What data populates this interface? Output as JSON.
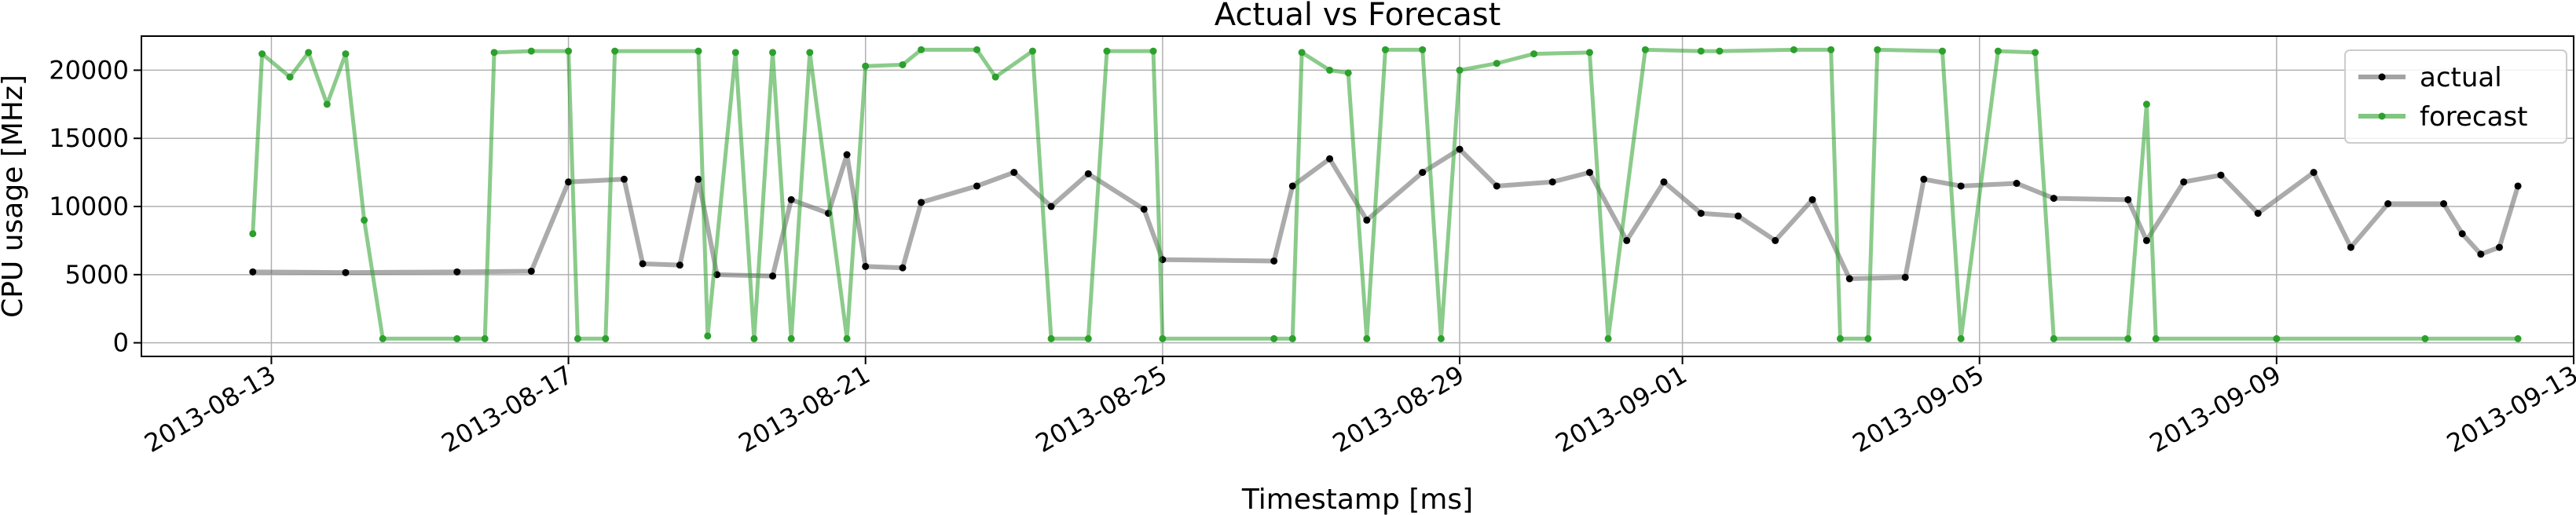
{
  "chart_data": {
    "type": "line",
    "title": "Actual vs Forecast",
    "xlabel": "Timestamp [ms]",
    "ylabel": "CPU usage [MHz]",
    "ylim": [
      -1000,
      22500
    ],
    "xlim": [
      "2013-08-11T06:00",
      "2013-09-13T00:00"
    ],
    "yticks": [
      0,
      5000,
      10000,
      15000,
      20000
    ],
    "xticks": [
      "2013-08-13",
      "2013-08-17",
      "2013-08-21",
      "2013-08-25",
      "2013-08-29",
      "2013-09-01",
      "2013-09-05",
      "2013-09-09",
      "2013-09-13"
    ],
    "grid": true,
    "legend_position": "top-right",
    "series": [
      {
        "name": "actual",
        "color": "#000000",
        "points": [
          [
            "2013-08-12T18:00",
            5200
          ],
          [
            "2013-08-14T00:00",
            5150
          ],
          [
            "2013-08-15T12:00",
            5200
          ],
          [
            "2013-08-16T12:00",
            5250
          ],
          [
            "2013-08-17T00:00",
            11800
          ],
          [
            "2013-08-17T18:00",
            12000
          ],
          [
            "2013-08-18T00:00",
            5800
          ],
          [
            "2013-08-18T12:00",
            5700
          ],
          [
            "2013-08-18T18:00",
            12000
          ],
          [
            "2013-08-19T00:00",
            5000
          ],
          [
            "2013-08-19T18:00",
            4900
          ],
          [
            "2013-08-20T00:00",
            10500
          ],
          [
            "2013-08-20T12:00",
            9500
          ],
          [
            "2013-08-20T18:00",
            13800
          ],
          [
            "2013-08-21T00:00",
            5600
          ],
          [
            "2013-08-21T12:00",
            5500
          ],
          [
            "2013-08-21T18:00",
            10300
          ],
          [
            "2013-08-22T12:00",
            11500
          ],
          [
            "2013-08-23T00:00",
            12500
          ],
          [
            "2013-08-23T12:00",
            10000
          ],
          [
            "2013-08-24T00:00",
            12400
          ],
          [
            "2013-08-24T18:00",
            9800
          ],
          [
            "2013-08-25T00:00",
            6100
          ],
          [
            "2013-08-26T12:00",
            6000
          ],
          [
            "2013-08-26T18:00",
            11500
          ],
          [
            "2013-08-27T06:00",
            13500
          ],
          [
            "2013-08-27T18:00",
            9000
          ],
          [
            "2013-08-28T12:00",
            12500
          ],
          [
            "2013-08-29T00:00",
            14200
          ],
          [
            "2013-08-29T12:00",
            11500
          ],
          [
            "2013-08-30T06:00",
            11800
          ],
          [
            "2013-08-30T18:00",
            12500
          ],
          [
            "2013-08-31T06:00",
            7500
          ],
          [
            "2013-08-31T18:00",
            11800
          ],
          [
            "2013-09-01T06:00",
            9500
          ],
          [
            "2013-09-01T18:00",
            9300
          ],
          [
            "2013-09-02T06:00",
            7500
          ],
          [
            "2013-09-02T18:00",
            10500
          ],
          [
            "2013-09-03T06:00",
            4700
          ],
          [
            "2013-09-04T00:00",
            4800
          ],
          [
            "2013-09-04T06:00",
            12000
          ],
          [
            "2013-09-04T18:00",
            11500
          ],
          [
            "2013-09-05T12:00",
            11700
          ],
          [
            "2013-09-06T00:00",
            10600
          ],
          [
            "2013-09-07T00:00",
            10500
          ],
          [
            "2013-09-07T06:00",
            7500
          ],
          [
            "2013-09-07T18:00",
            11800
          ],
          [
            "2013-09-08T06:00",
            12300
          ],
          [
            "2013-09-08T18:00",
            9500
          ],
          [
            "2013-09-09T12:00",
            12500
          ],
          [
            "2013-09-10T00:00",
            7000
          ],
          [
            "2013-09-10T12:00",
            10200
          ],
          [
            "2013-09-11T06:00",
            10200
          ],
          [
            "2013-09-11T12:00",
            8000
          ],
          [
            "2013-09-11T18:00",
            6500
          ],
          [
            "2013-09-12T00:00",
            7000
          ],
          [
            "2013-09-12T06:00",
            11500
          ]
        ]
      },
      {
        "name": "forecast",
        "color": "#2ca02c",
        "points": [
          [
            "2013-08-12T18:00",
            8000
          ],
          [
            "2013-08-12T21:00",
            21200
          ],
          [
            "2013-08-13T06:00",
            19500
          ],
          [
            "2013-08-13T12:00",
            21300
          ],
          [
            "2013-08-13T18:00",
            17500
          ],
          [
            "2013-08-14T00:00",
            21200
          ],
          [
            "2013-08-14T06:00",
            9000
          ],
          [
            "2013-08-14T12:00",
            300
          ],
          [
            "2013-08-15T12:00",
            300
          ],
          [
            "2013-08-15T21:00",
            300
          ],
          [
            "2013-08-16T00:00",
            21300
          ],
          [
            "2013-08-16T12:00",
            21400
          ],
          [
            "2013-08-17T00:00",
            21400
          ],
          [
            "2013-08-17T03:00",
            300
          ],
          [
            "2013-08-17T12:00",
            300
          ],
          [
            "2013-08-17T15:00",
            21400
          ],
          [
            "2013-08-18T18:00",
            21400
          ],
          [
            "2013-08-18T21:00",
            500
          ],
          [
            "2013-08-19T06:00",
            21300
          ],
          [
            "2013-08-19T12:00",
            300
          ],
          [
            "2013-08-19T18:00",
            21300
          ],
          [
            "2013-08-20T00:00",
            300
          ],
          [
            "2013-08-20T06:00",
            21300
          ],
          [
            "2013-08-20T18:00",
            300
          ],
          [
            "2013-08-21T00:00",
            20300
          ],
          [
            "2013-08-21T12:00",
            20400
          ],
          [
            "2013-08-21T18:00",
            21500
          ],
          [
            "2013-08-22T12:00",
            21500
          ],
          [
            "2013-08-22T18:00",
            19500
          ],
          [
            "2013-08-23T06:00",
            21400
          ],
          [
            "2013-08-23T12:00",
            300
          ],
          [
            "2013-08-24T00:00",
            300
          ],
          [
            "2013-08-24T06:00",
            21400
          ],
          [
            "2013-08-24T21:00",
            21400
          ],
          [
            "2013-08-25T00:00",
            300
          ],
          [
            "2013-08-26T12:00",
            300
          ],
          [
            "2013-08-26T18:00",
            300
          ],
          [
            "2013-08-26T21:00",
            21300
          ],
          [
            "2013-08-27T06:00",
            20000
          ],
          [
            "2013-08-27T12:00",
            19800
          ],
          [
            "2013-08-27T18:00",
            300
          ],
          [
            "2013-08-28T00:00",
            21500
          ],
          [
            "2013-08-28T12:00",
            21500
          ],
          [
            "2013-08-28T18:00",
            300
          ],
          [
            "2013-08-29T00:00",
            20000
          ],
          [
            "2013-08-29T12:00",
            20500
          ],
          [
            "2013-08-30T00:00",
            21200
          ],
          [
            "2013-08-30T18:00",
            21300
          ],
          [
            "2013-08-31T00:00",
            300
          ],
          [
            "2013-08-31T12:00",
            21500
          ],
          [
            "2013-09-01T06:00",
            21400
          ],
          [
            "2013-09-01T12:00",
            21400
          ],
          [
            "2013-09-02T12:00",
            21500
          ],
          [
            "2013-09-03T00:00",
            21500
          ],
          [
            "2013-09-03T03:00",
            300
          ],
          [
            "2013-09-03T12:00",
            300
          ],
          [
            "2013-09-03T15:00",
            21500
          ],
          [
            "2013-09-04T12:00",
            21400
          ],
          [
            "2013-09-04T18:00",
            300
          ],
          [
            "2013-09-05T06:00",
            21400
          ],
          [
            "2013-09-05T18:00",
            21300
          ],
          [
            "2013-09-06T00:00",
            300
          ],
          [
            "2013-09-07T00:00",
            300
          ],
          [
            "2013-09-07T06:00",
            17500
          ],
          [
            "2013-09-07T09:00",
            300
          ],
          [
            "2013-09-09T00:00",
            300
          ],
          [
            "2013-09-11T00:00",
            300
          ],
          [
            "2013-09-12T06:00",
            300
          ]
        ]
      }
    ]
  }
}
